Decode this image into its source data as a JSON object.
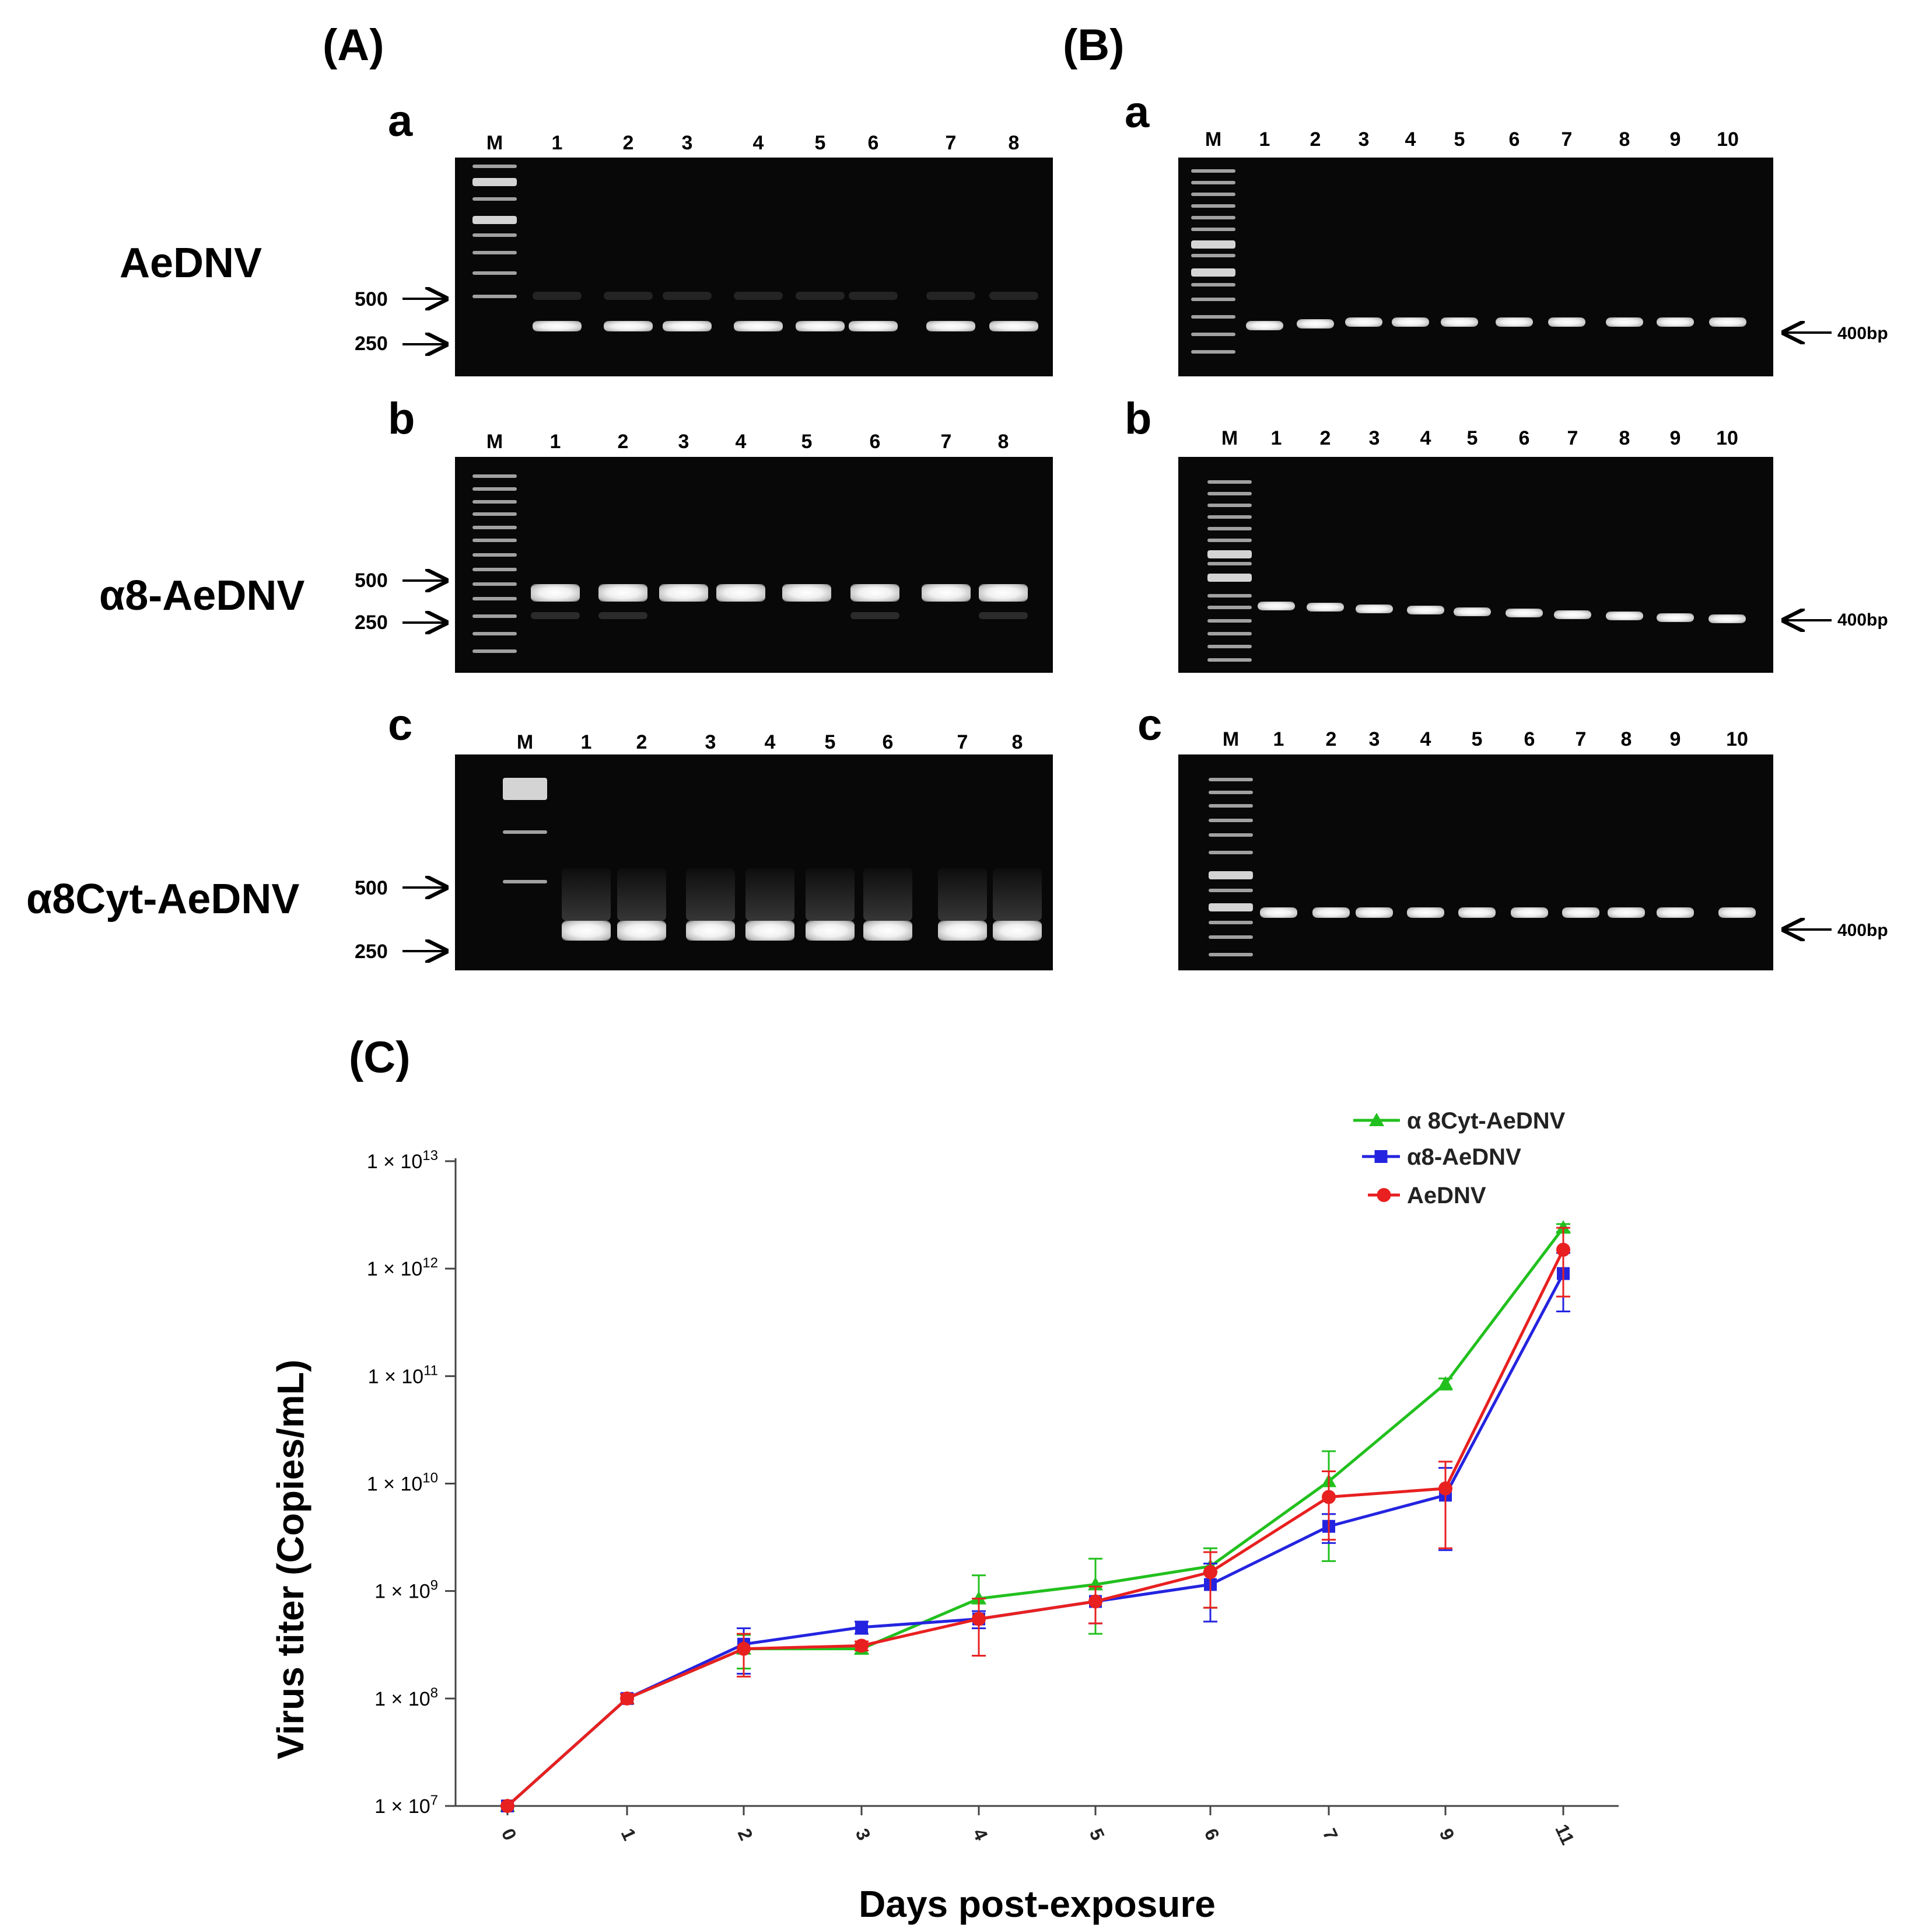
{
  "panels": {
    "A": "(A)",
    "B": "(B)",
    "C": "(C)"
  },
  "sublabels": [
    "a",
    "b",
    "c"
  ],
  "row_labels": [
    "AeDNV",
    "α8-AeDNV",
    "α8Cyt-AeDNV"
  ],
  "gel_A": {
    "marker": "M",
    "lanes": [
      "1",
      "2",
      "3",
      "4",
      "5",
      "6",
      "7",
      "8"
    ],
    "size_markers": [
      "500",
      "250"
    ]
  },
  "gel_B": {
    "marker": "M",
    "lanes": [
      "1",
      "2",
      "3",
      "4",
      "5",
      "6",
      "7",
      "8",
      "9",
      "10"
    ],
    "band_label": "400bp"
  },
  "chart_data": {
    "type": "line",
    "xlabel": "Days post-exposure",
    "ylabel": "Virus titer (Copies/mL)",
    "x": [
      "0",
      "1",
      "2",
      "3",
      "4",
      "5",
      "6",
      "7",
      "9",
      "11"
    ],
    "y_scale": "log",
    "ylim": [
      10000000,
      10000000000000
    ],
    "y_ticks": [
      {
        "mant": "1 × 10",
        "exp": "7"
      },
      {
        "mant": "1 × 10",
        "exp": "8"
      },
      {
        "mant": "1 × 10",
        "exp": "9"
      },
      {
        "mant": "1 × 10",
        "exp": "10"
      },
      {
        "mant": "1 × 10",
        "exp": "11"
      },
      {
        "mant": "1 × 10",
        "exp": "12"
      },
      {
        "mant": "1 × 10",
        "exp": "13"
      }
    ],
    "legend_position": "top-right",
    "grid": false,
    "series": [
      {
        "name": "α 8Cyt-AeDNV",
        "color": "#22c01e",
        "marker": "triangle",
        "values": [
          10000000.0,
          100000000.0,
          290000000.0,
          290000000.0,
          850000000.0,
          1150000000.0,
          1700000000.0,
          10500000000.0,
          85000000000.0,
          2400000000000.0
        ],
        "err_low": [
          10000000.0,
          90000000.0,
          190000000.0,
          260000000.0,
          450000000.0,
          400000000.0,
          700000000.0,
          1900000000.0,
          75000000000.0,
          2200000000000.0
        ],
        "err_high": [
          10000000.0,
          110000000.0,
          390000000.0,
          320000000.0,
          1400000000.0,
          2000000000.0,
          2500000000.0,
          20000000000.0,
          95000000000.0,
          2600000000000.0
        ]
      },
      {
        "name": "α8-AeDNV",
        "color": "#2424e0",
        "marker": "square",
        "values": [
          10000000.0,
          100000000.0,
          320000000.0,
          460000000.0,
          550000000.0,
          800000000.0,
          1150000000.0,
          4000000000.0,
          7800000000.0,
          900000000000.0
        ],
        "err_low": [
          10000000.0,
          90000000.0,
          170000000.0,
          400000000.0,
          450000000.0,
          500000000.0,
          520000000.0,
          2800000000.0,
          2400000000.0,
          400000000000.0
        ],
        "err_high": [
          10000000.0,
          110000000.0,
          450000000.0,
          520000000.0,
          650000000.0,
          1100000000.0,
          1800000000.0,
          5200000000.0,
          14000000000.0,
          1400000000000.0
        ]
      },
      {
        "name": "AeDNV",
        "color": "#e82020",
        "marker": "circle",
        "values": [
          10000000.0,
          100000000.0,
          290000000.0,
          310000000.0,
          550000000.0,
          800000000.0,
          1500000000.0,
          7500000000.0,
          9000000000.0,
          1500000000000.0
        ],
        "err_low": [
          10000000.0,
          90000000.0,
          160000000.0,
          280000000.0,
          250000000.0,
          500000000.0,
          700000000.0,
          3000000000.0,
          2500000000.0,
          550000000000.0
        ],
        "err_high": [
          10000000.0,
          110000000.0,
          400000000.0,
          340000000.0,
          850000000.0,
          1100000000.0,
          2300000000.0,
          13000000000.0,
          16000000000.0,
          2400000000000.0
        ]
      }
    ]
  }
}
